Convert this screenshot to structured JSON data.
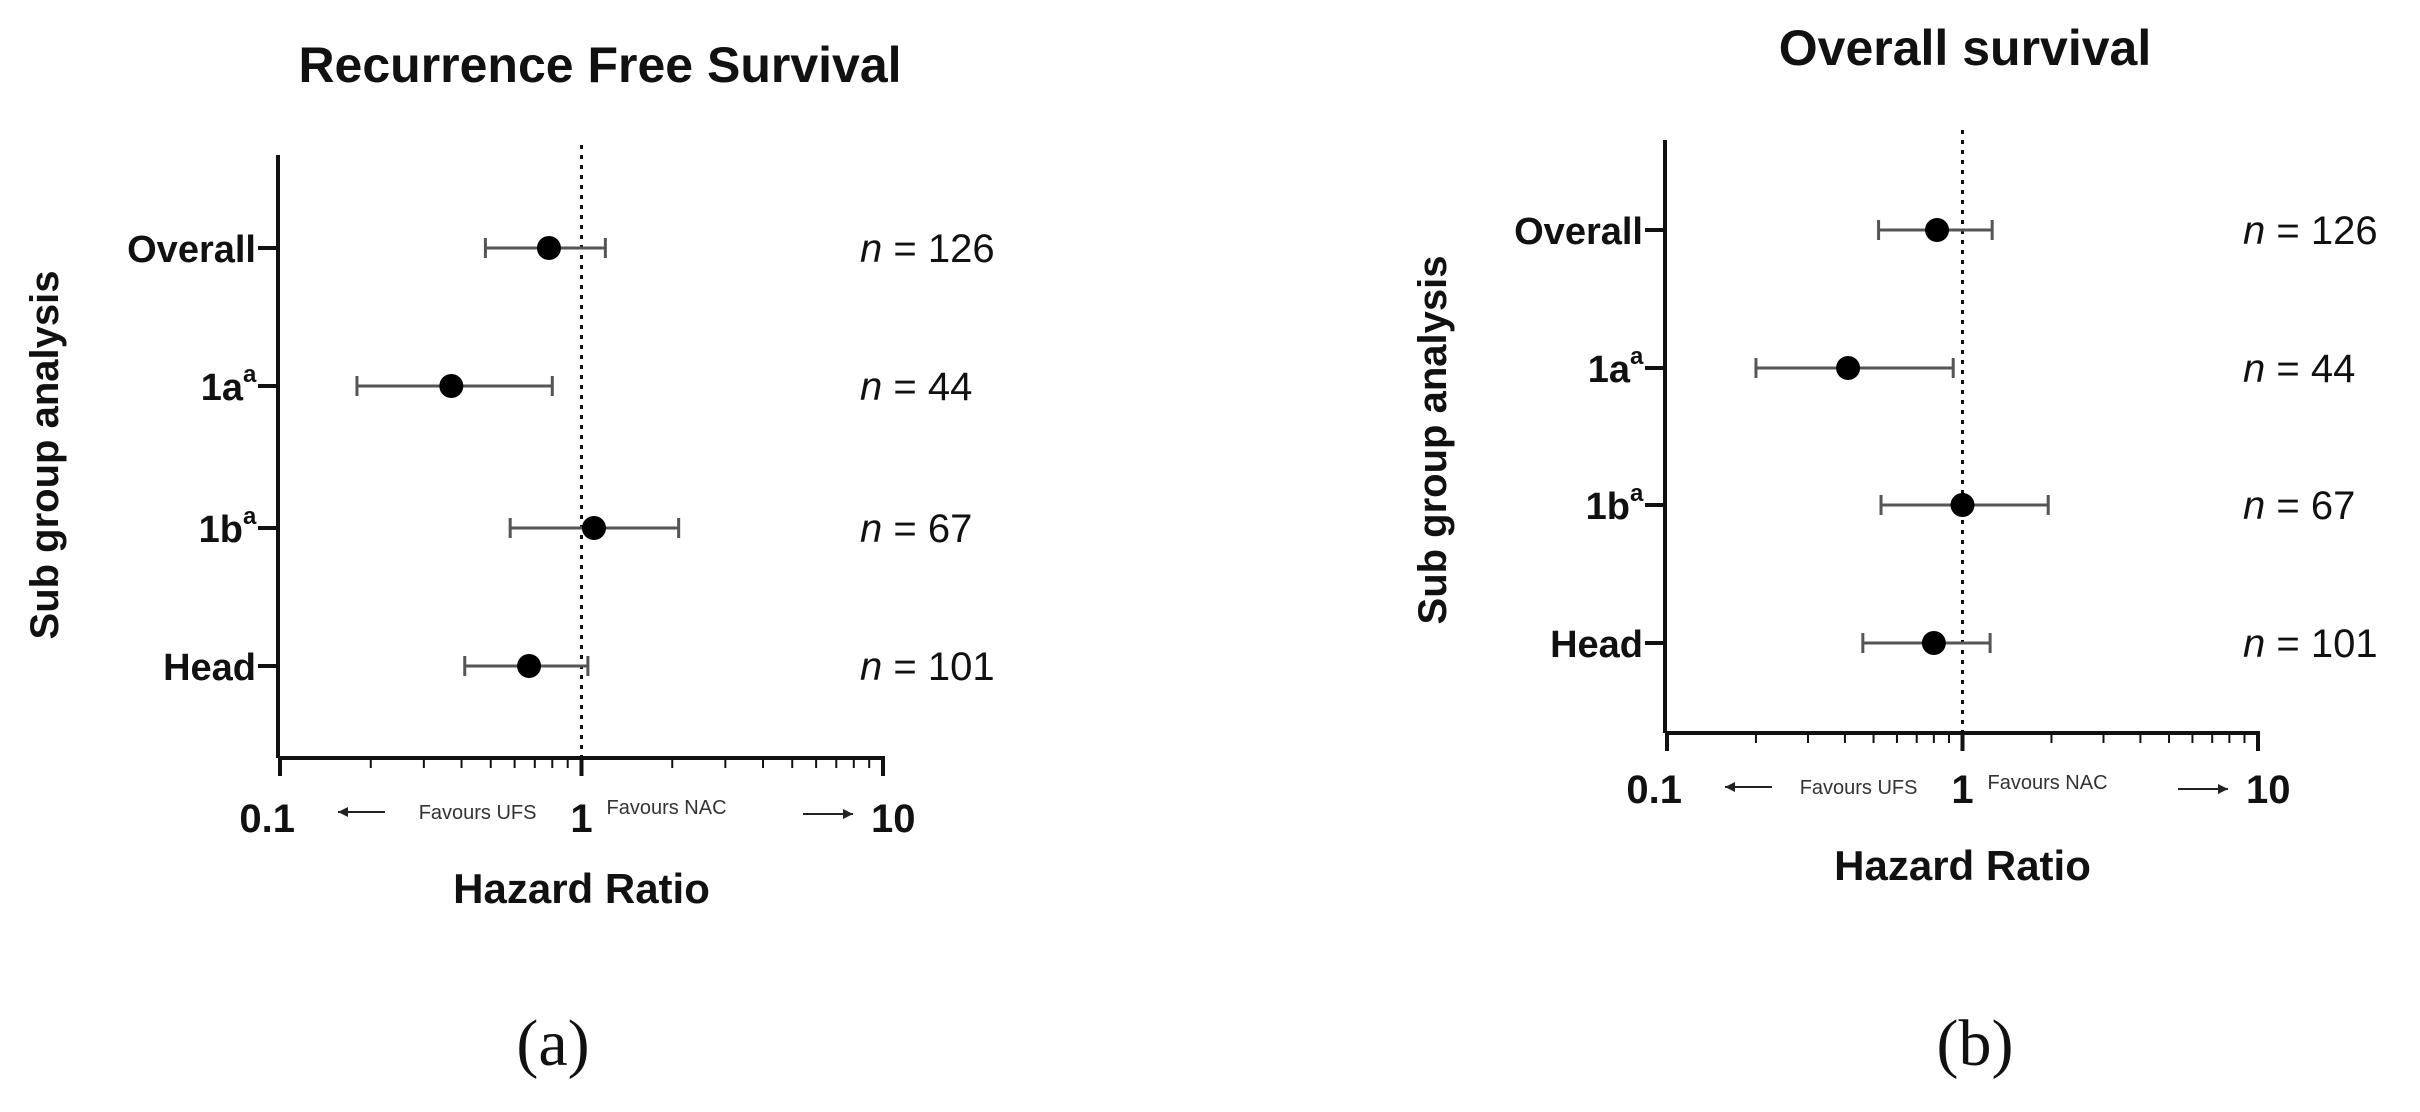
{
  "chart_data": [
    {
      "type": "forest",
      "panel_label": "(a)",
      "title": "Recurrence Free Survival",
      "ylabel": "Sub group analysis",
      "xlabel": "Hazard Ratio",
      "xscale": "log",
      "xlim": [
        0.1,
        10
      ],
      "xticks": [
        "0.1",
        "1",
        "10"
      ],
      "reference_line": 1,
      "favours_left": "Favours UFS",
      "favours_right": "Favours NAC",
      "rows": [
        {
          "label": "Overall",
          "sup": "",
          "n": "126",
          "hr": 0.78,
          "lower": 0.48,
          "upper": 1.2
        },
        {
          "label": "1a",
          "sup": "a",
          "n": "44",
          "hr": 0.37,
          "lower": 0.18,
          "upper": 0.8
        },
        {
          "label": "1b",
          "sup": "a",
          "n": "67",
          "hr": 1.1,
          "lower": 0.58,
          "upper": 2.1
        },
        {
          "label": "Head",
          "sup": "",
          "n": "101",
          "hr": 0.67,
          "lower": 0.41,
          "upper": 1.05
        }
      ]
    },
    {
      "type": "forest",
      "panel_label": "(b)",
      "title": "Overall survival",
      "ylabel": "Sub group analysis",
      "xlabel": "Hazard Ratio",
      "xscale": "log",
      "xlim": [
        0.1,
        10
      ],
      "xticks": [
        "0.1",
        "1",
        "10"
      ],
      "reference_line": 1,
      "favours_left": "Favours UFS",
      "favours_right": "Favours NAC",
      "rows": [
        {
          "label": "Overall",
          "sup": "",
          "n": "126",
          "hr": 0.82,
          "lower": 0.52,
          "upper": 1.26
        },
        {
          "label": "1a",
          "sup": "a",
          "n": "44",
          "hr": 0.41,
          "lower": 0.2,
          "upper": 0.93
        },
        {
          "label": "1b",
          "sup": "a",
          "n": "67",
          "hr": 1.0,
          "lower": 0.53,
          "upper": 1.95
        },
        {
          "label": "Head",
          "sup": "",
          "n": "101",
          "hr": 0.8,
          "lower": 0.46,
          "upper": 1.24
        }
      ]
    }
  ]
}
